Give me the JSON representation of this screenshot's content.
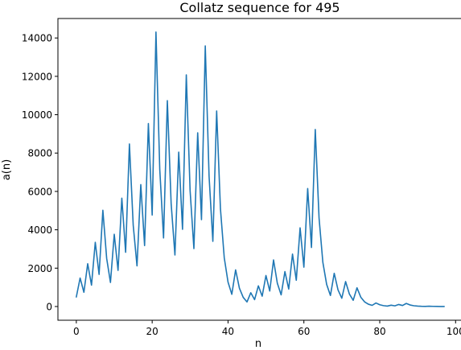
{
  "chart_data": {
    "type": "line",
    "title": "Collatz sequence for 495",
    "xlabel": "n",
    "ylabel": "a(n)",
    "xlim": [
      -4.85,
      101.85
    ],
    "ylim": [
      -715,
      15015
    ],
    "x_ticks": [
      0,
      20,
      40,
      60,
      80,
      100
    ],
    "y_ticks": [
      0,
      2000,
      4000,
      6000,
      8000,
      10000,
      12000,
      14000
    ],
    "grid": false,
    "legend": "none",
    "series": [
      {
        "color": "#1f77b4",
        "x_start": 0,
        "values": [
          495,
          1486,
          743,
          2230,
          1115,
          3346,
          1673,
          5020,
          2510,
          1255,
          3766,
          1883,
          5650,
          2825,
          8476,
          4238,
          2119,
          6358,
          3179,
          9538,
          4769,
          14308,
          7154,
          3577,
          10732,
          5366,
          2683,
          8050,
          4025,
          12076,
          6038,
          3019,
          9058,
          4529,
          13588,
          6794,
          3397,
          10192,
          5096,
          2548,
          1274,
          637,
          1912,
          956,
          478,
          239,
          718,
          359,
          1078,
          539,
          1618,
          809,
          2428,
          1214,
          607,
          1822,
          911,
          2734,
          1367,
          4102,
          2051,
          6154,
          3077,
          9232,
          4616,
          2308,
          1154,
          577,
          1732,
          866,
          433,
          1300,
          650,
          325,
          976,
          488,
          244,
          122,
          61,
          184,
          92,
          46,
          23,
          70,
          35,
          106,
          53,
          160,
          80,
          40,
          20,
          10,
          5,
          16,
          8,
          4,
          2,
          1
        ]
      }
    ]
  }
}
